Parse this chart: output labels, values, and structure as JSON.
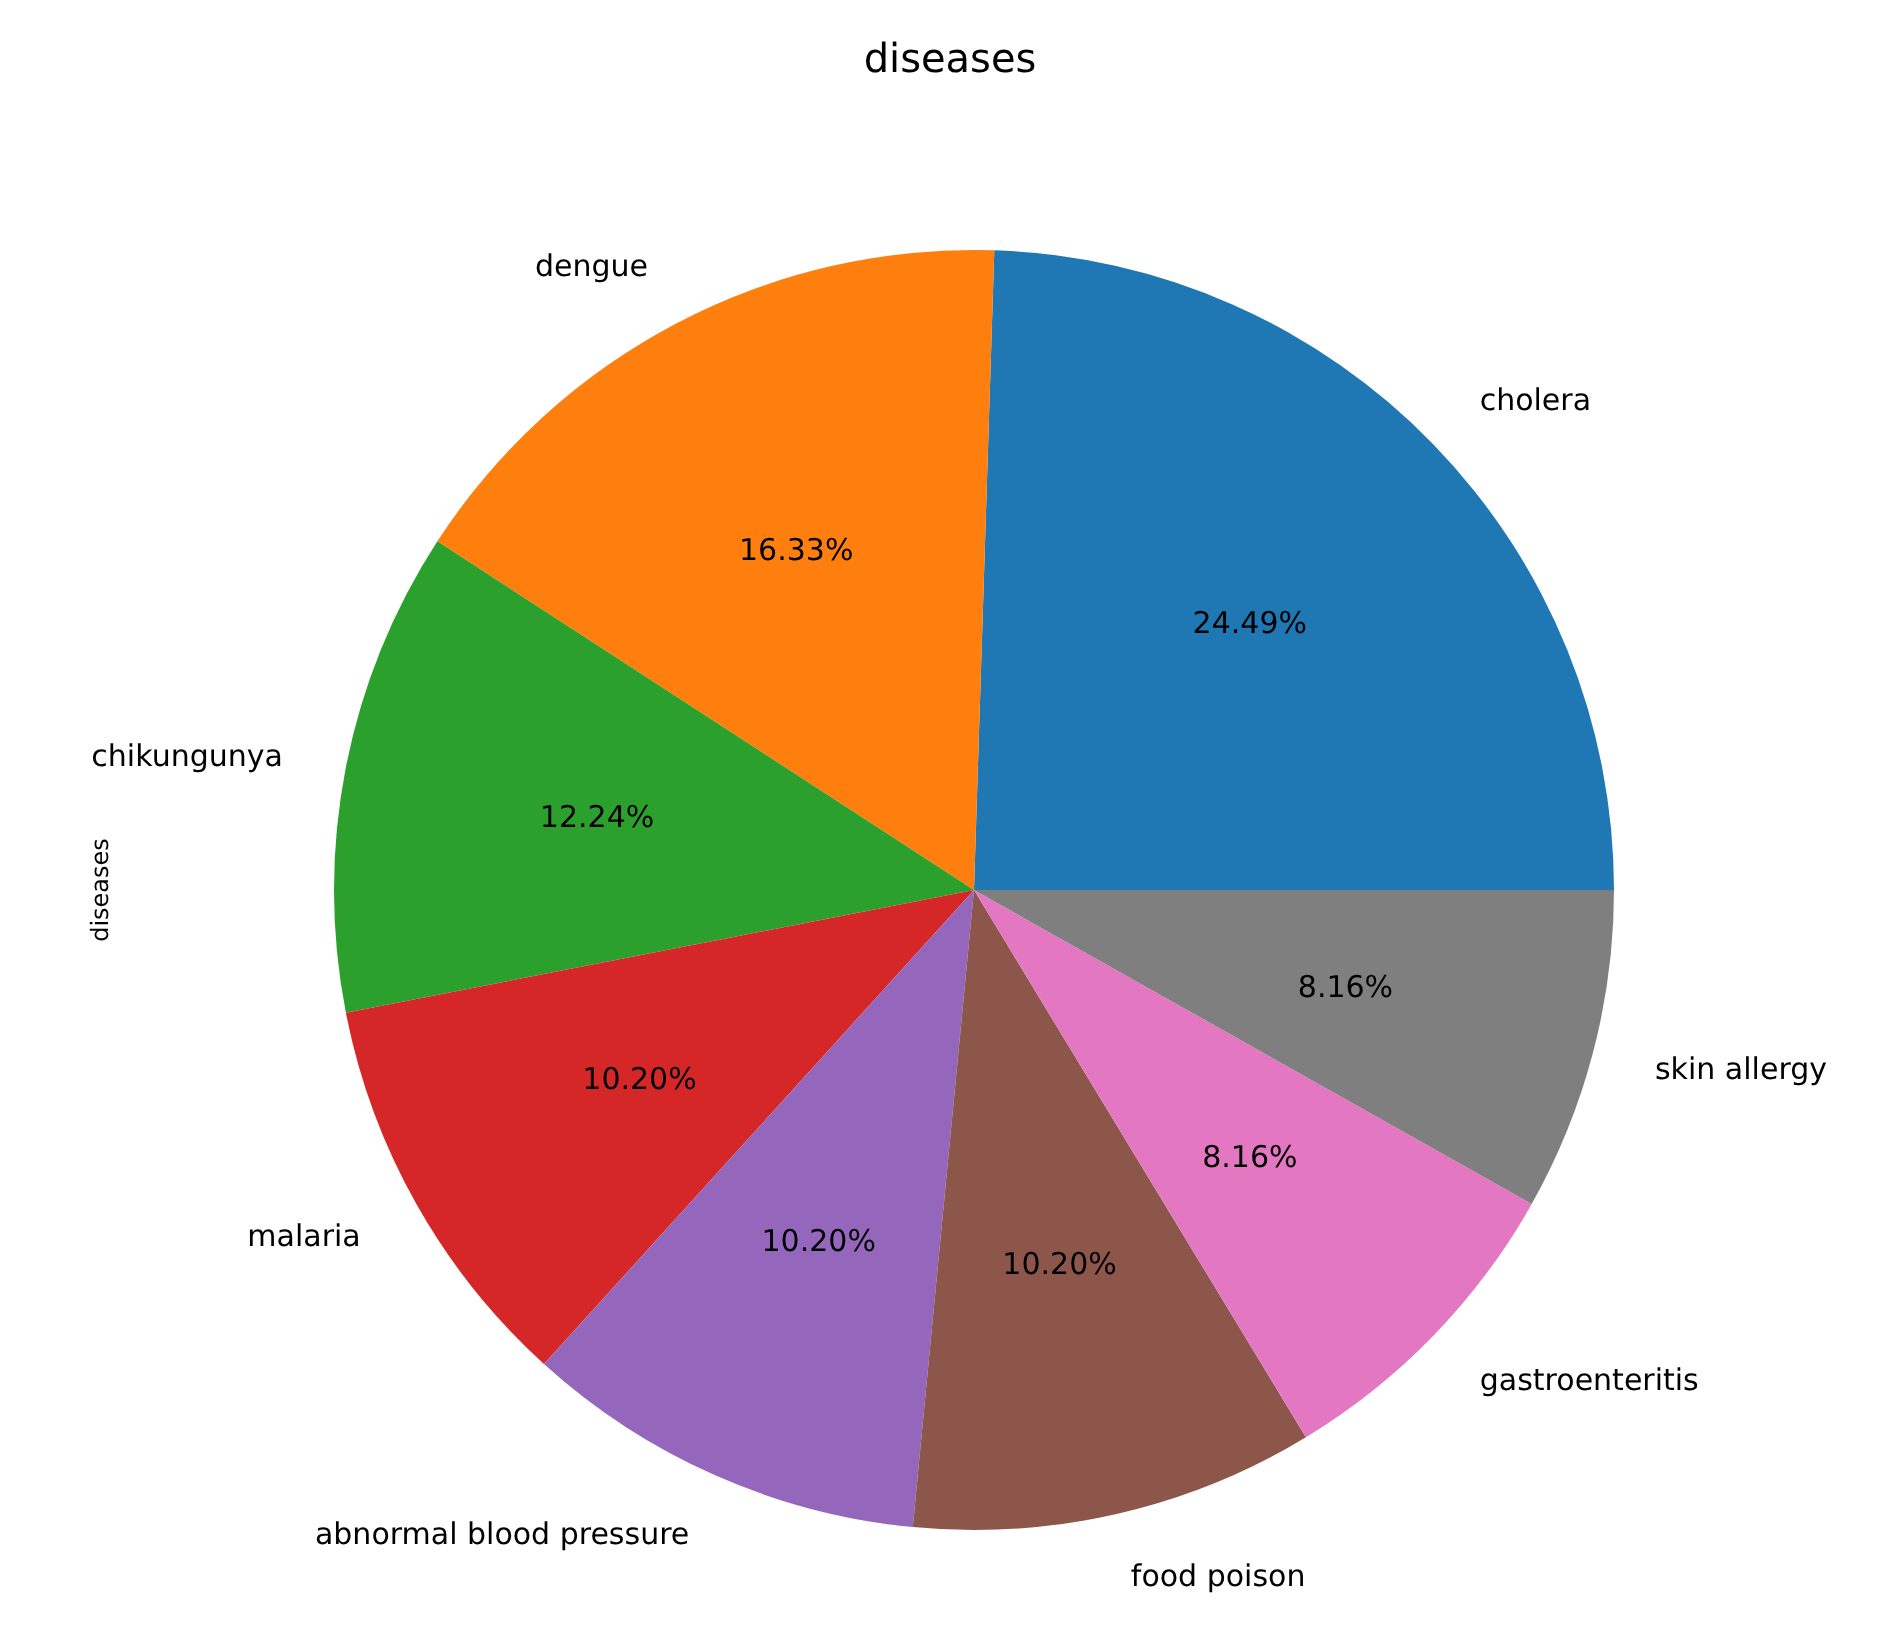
{
  "chart_data": {
    "type": "pie",
    "title": "diseases",
    "ylabel": "diseases",
    "categories": [
      "cholera",
      "dengue",
      "chikungunya",
      "malaria",
      "abnormal blood pressure",
      "food poison",
      "gastroenteritis",
      "skin allergy"
    ],
    "values": [
      24.49,
      16.33,
      12.24,
      10.2,
      10.2,
      10.2,
      8.16,
      8.16
    ],
    "value_labels": [
      "24.49%",
      "16.33%",
      "12.24%",
      "10.20%",
      "10.20%",
      "10.20%",
      "8.16%",
      "8.16%"
    ],
    "colors": [
      "#1f77b4",
      "#ff7f0e",
      "#2ca02c",
      "#d62728",
      "#9467bd",
      "#8c564b",
      "#e377c2",
      "#7f7f7f"
    ]
  }
}
